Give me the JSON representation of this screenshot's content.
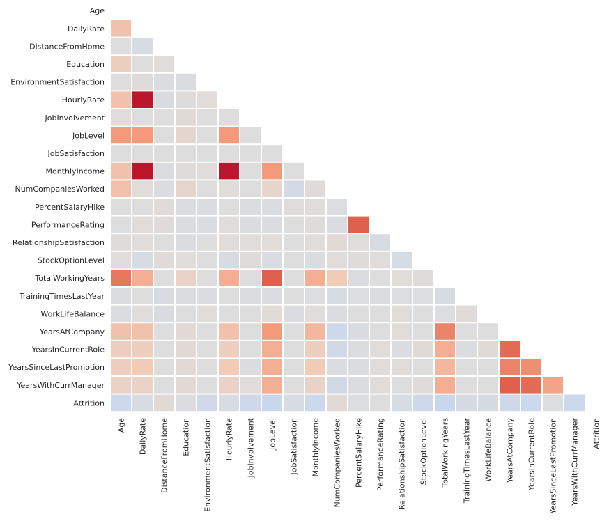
{
  "chart_data": {
    "type": "heatmap",
    "title": "",
    "xlabel": "",
    "ylabel": "",
    "mask": "upper-triangle including diagonal",
    "colormap": "coolwarm",
    "vrange": [
      -1,
      1
    ],
    "colorbar": false,
    "labels": [
      "Age",
      "DailyRate",
      "DistanceFromHome",
      "Education",
      "EnvironmentSatisfaction",
      "HourlyRate",
      "JobInvolvement",
      "JobLevel",
      "JobSatisfaction",
      "MonthlyIncome",
      "NumCompaniesWorked",
      "PercentSalaryHike",
      "PerformanceRating",
      "RelationshipSatisfaction",
      "StockOptionLevel",
      "TotalWorkingYears",
      "TrainingTimesLastYear",
      "WorkLifeBalance",
      "YearsAtCompany",
      "YearsInCurrentRole",
      "YearsSinceLastPromotion",
      "YearsWithCurrManager",
      "Attrition"
    ],
    "values": [
      [],
      [
        0.3
      ],
      [
        0.0,
        -0.05
      ],
      [
        0.2,
        0.0,
        0.02
      ],
      [
        0.0,
        0.01,
        -0.03,
        -0.03
      ],
      [
        0.3,
        0.95,
        -0.04,
        0.01,
        0.02
      ],
      [
        0.02,
        0.0,
        0.0,
        0.04,
        0.0,
        0.0
      ],
      [
        0.5,
        0.5,
        0.0,
        0.1,
        0.0,
        0.5,
        0.0
      ],
      [
        0.0,
        0.0,
        0.0,
        0.0,
        0.0,
        0.0,
        0.0,
        0.0
      ],
      [
        0.3,
        0.95,
        -0.03,
        0.01,
        0.02,
        0.95,
        0.0,
        0.5,
        0.0
      ],
      [
        0.3,
        0.02,
        -0.03,
        0.12,
        0.0,
        0.02,
        0.0,
        0.12,
        -0.08,
        0.03
      ],
      [
        0.0,
        0.0,
        0.03,
        -0.02,
        -0.03,
        0.0,
        -0.03,
        -0.03,
        0.02,
        0.02,
        -0.01
      ],
      [
        0.0,
        0.02,
        0.03,
        -0.03,
        -0.03,
        0.02,
        -0.02,
        -0.02,
        0.0,
        0.03,
        -0.02,
        0.75
      ],
      [
        0.03,
        0.02,
        0.0,
        -0.03,
        0.0,
        0.02,
        0.02,
        0.02,
        0.0,
        0.02,
        0.05,
        0.02,
        -0.04
      ],
      [
        0.02,
        -0.05,
        0.03,
        0.02,
        0.0,
        -0.04,
        0.01,
        -0.02,
        0.0,
        -0.03,
        0.02,
        0.01,
        0.02,
        -0.05
      ],
      [
        0.65,
        0.4,
        0.0,
        0.15,
        0.0,
        0.4,
        0.0,
        0.75,
        0.0,
        0.4,
        0.25,
        -0.02,
        0.0,
        0.02,
        0.01
      ],
      [
        -0.02,
        0.0,
        -0.04,
        -0.03,
        -0.03,
        0.0,
        -0.03,
        -0.02,
        0.0,
        -0.01,
        -0.05,
        -0.01,
        -0.02,
        -0.01,
        -0.01,
        -0.05
      ],
      [
        -0.02,
        0.02,
        -0.04,
        0.0,
        0.02,
        0.0,
        0.0,
        0.03,
        -0.02,
        0.02,
        -0.02,
        0.0,
        0.0,
        0.02,
        0.0,
        -0.01,
        0.03
      ],
      [
        0.3,
        0.3,
        0.0,
        0.05,
        0.0,
        0.3,
        0.0,
        0.5,
        0.0,
        0.35,
        -0.15,
        -0.04,
        0.0,
        0.02,
        0.0,
        0.6,
        0.0,
        0.0
      ],
      [
        0.2,
        0.2,
        0.0,
        0.05,
        0.0,
        0.2,
        0.0,
        0.4,
        0.0,
        0.2,
        -0.1,
        -0.03,
        0.02,
        -0.03,
        0.04,
        0.4,
        -0.02,
        0.04,
        0.7
      ],
      [
        0.2,
        0.25,
        0.0,
        0.05,
        0.0,
        0.25,
        -0.02,
        0.4,
        0.0,
        0.25,
        -0.03,
        -0.02,
        0.02,
        0.02,
        0.0,
        0.35,
        0.0,
        0.0,
        0.6,
        0.55
      ],
      [
        0.15,
        0.15,
        0.0,
        0.05,
        0.0,
        0.15,
        0.02,
        0.4,
        0.0,
        0.15,
        -0.1,
        -0.03,
        0.02,
        0.0,
        0.03,
        0.4,
        0.0,
        0.0,
        0.75,
        0.7,
        0.45
      ],
      [
        -0.15,
        -0.05,
        0.05,
        -0.03,
        -0.1,
        -0.05,
        -0.13,
        -0.17,
        -0.05,
        -0.15,
        0.05,
        -0.01,
        0.0,
        -0.05,
        -0.13,
        -0.17,
        -0.06,
        -0.06,
        -0.13,
        -0.15,
        -0.01,
        -0.15
      ]
    ]
  }
}
